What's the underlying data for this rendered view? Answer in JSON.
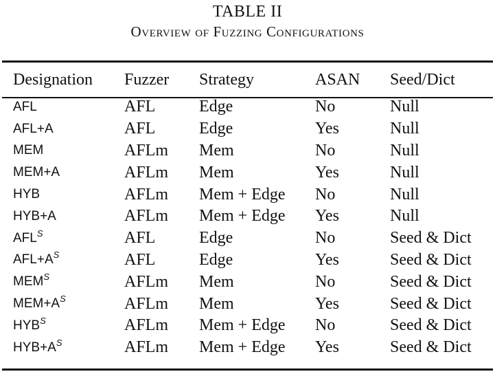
{
  "caption": {
    "label": "TABLE II",
    "title": "Overview of Fuzzing Configurations"
  },
  "table": {
    "headers": [
      "Designation",
      "Fuzzer",
      "Strategy",
      "ASAN",
      "Seed/Dict"
    ],
    "rows": [
      {
        "designation": "AFL",
        "superscript": "",
        "fuzzer": "AFL",
        "strategy": "Edge",
        "asan": "No",
        "seed_dict": "Null"
      },
      {
        "designation": "AFL+A",
        "superscript": "",
        "fuzzer": "AFL",
        "strategy": "Edge",
        "asan": "Yes",
        "seed_dict": "Null"
      },
      {
        "designation": "MEM",
        "superscript": "",
        "fuzzer": "AFLm",
        "strategy": "Mem",
        "asan": "No",
        "seed_dict": "Null"
      },
      {
        "designation": "MEM+A",
        "superscript": "",
        "fuzzer": "AFLm",
        "strategy": "Mem",
        "asan": "Yes",
        "seed_dict": "Null"
      },
      {
        "designation": "HYB",
        "superscript": "",
        "fuzzer": "AFLm",
        "strategy": "Mem + Edge",
        "asan": "No",
        "seed_dict": "Null"
      },
      {
        "designation": "HYB+A",
        "superscript": "",
        "fuzzer": "AFLm",
        "strategy": "Mem + Edge",
        "asan": "Yes",
        "seed_dict": "Null"
      },
      {
        "designation": "AFL",
        "superscript": "S",
        "fuzzer": "AFL",
        "strategy": "Edge",
        "asan": "No",
        "seed_dict": "Seed & Dict"
      },
      {
        "designation": "AFL+A",
        "superscript": "S",
        "fuzzer": "AFL",
        "strategy": "Edge",
        "asan": "Yes",
        "seed_dict": "Seed & Dict"
      },
      {
        "designation": "MEM",
        "superscript": "S",
        "fuzzer": "AFLm",
        "strategy": "Mem",
        "asan": "No",
        "seed_dict": "Seed & Dict"
      },
      {
        "designation": "MEM+A",
        "superscript": "S",
        "fuzzer": "AFLm",
        "strategy": "Mem",
        "asan": "Yes",
        "seed_dict": "Seed & Dict"
      },
      {
        "designation": "HYB",
        "superscript": "S",
        "fuzzer": "AFLm",
        "strategy": "Mem + Edge",
        "asan": "No",
        "seed_dict": "Seed & Dict"
      },
      {
        "designation": "HYB+A",
        "superscript": "S",
        "fuzzer": "AFLm",
        "strategy": "Mem + Edge",
        "asan": "Yes",
        "seed_dict": "Seed & Dict"
      }
    ]
  }
}
